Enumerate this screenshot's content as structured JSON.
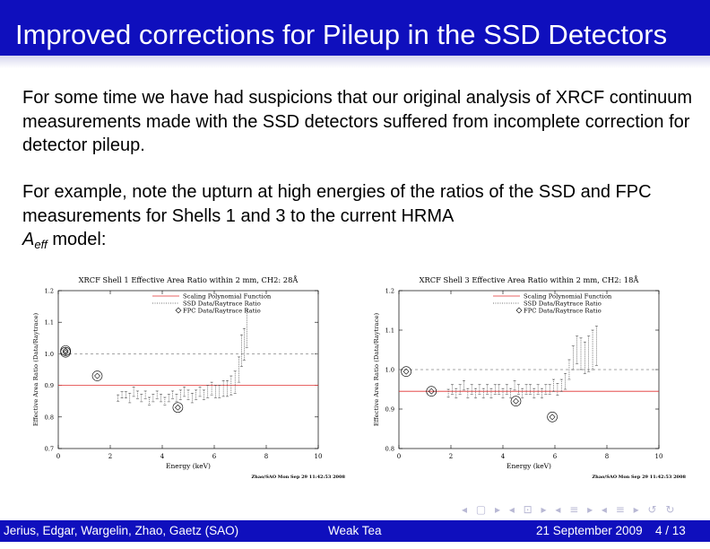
{
  "header": {
    "title": "Improved corrections for Pileup in the SSD Detectors"
  },
  "body": {
    "paragraph1": "For some time we have had suspicions that our original analysis of XRCF continuum measurements made with the SSD detectors suffered from incomplete correction for detector pileup.",
    "paragraph2": "For example, note the upturn at high energies of the ratios of the SSD and FPC measurements for Shells 1 and 3 to the current HRMA",
    "aeff_symbol": "A",
    "aeff_subscript": "eff",
    "aeff_suffix": "model:"
  },
  "footer": {
    "authors": "Jerius, Edgar, Wargelin, Zhao, Gaetz  (SAO)",
    "center": "Weak Tea",
    "date": "21 September 2009",
    "page": "4 / 13"
  },
  "nav": {
    "glyphs": "◂ ▢ ▸ ◂ ⊡ ▸ ◂ ≡ ▸ ◂ ≡ ▸ ↺ ↻"
  },
  "colors": {
    "banner": "#0f0fbd",
    "fit_line": "#e03030",
    "dashed_ref": "#888888"
  },
  "chart_data": [
    {
      "type": "scatter",
      "title": "XRCF Shell 1 Effective Area Ratio within 2 mm, CH2: 28Å",
      "xlabel": "Energy (keV)",
      "ylabel": "Effective Area Ratio (Data/Raytrace)",
      "xlim": [
        0,
        10
      ],
      "ylim": [
        0.7,
        1.2
      ],
      "xticks": [
        "0",
        "2",
        "4",
        "6",
        "8",
        "10"
      ],
      "yticks": [
        "0.7",
        "0.8",
        "0.9",
        "1.0",
        "1.1",
        "1.2"
      ],
      "legend": [
        "Scaling Polynomial Function",
        "SSD Data/Raytrace Ratio",
        "FPC Data/Raytrace Ratio"
      ],
      "legend_position": "top-right",
      "stamp": "Zhao/SAO Mon Sep 29 11:42:53 2008",
      "fit_level": 0.9,
      "reference_level": 1.0,
      "series": [
        {
          "name": "SSD Data/Raytrace Ratio",
          "x": [
            2.3,
            2.45,
            2.6,
            2.75,
            2.9,
            3.05,
            3.2,
            3.35,
            3.5,
            3.65,
            3.8,
            3.95,
            4.1,
            4.25,
            4.4,
            4.55,
            4.7,
            4.85,
            5.0,
            5.15,
            5.3,
            5.45,
            5.6,
            5.75,
            5.9,
            6.05,
            6.2,
            6.35,
            6.5,
            6.65,
            6.8,
            6.95,
            7.05,
            7.15,
            7.25
          ],
          "y": [
            0.86,
            0.87,
            0.87,
            0.86,
            0.88,
            0.87,
            0.86,
            0.87,
            0.85,
            0.86,
            0.87,
            0.86,
            0.85,
            0.86,
            0.87,
            0.86,
            0.87,
            0.88,
            0.87,
            0.86,
            0.87,
            0.88,
            0.87,
            0.88,
            0.89,
            0.88,
            0.88,
            0.89,
            0.89,
            0.9,
            0.91,
            0.95,
            1.01,
            1.03,
            1.08
          ],
          "err": [
            0.01,
            0.01,
            0.01,
            0.015,
            0.015,
            0.012,
            0.012,
            0.012,
            0.012,
            0.012,
            0.012,
            0.012,
            0.012,
            0.012,
            0.012,
            0.012,
            0.015,
            0.015,
            0.015,
            0.015,
            0.015,
            0.015,
            0.015,
            0.02,
            0.02,
            0.02,
            0.02,
            0.025,
            0.025,
            0.03,
            0.035,
            0.04,
            0.05,
            0.05,
            0.06
          ]
        },
        {
          "name": "FPC Data/Raytrace Ratio",
          "x": [
            0.28,
            0.28,
            1.5,
            4.6
          ],
          "y": [
            1.01,
            1.005,
            0.93,
            0.83
          ]
        }
      ]
    },
    {
      "type": "scatter",
      "title": "XRCF Shell 3 Effective Area Ratio within 2 mm, CH2: 18Å",
      "xlabel": "Energy (keV)",
      "ylabel": "Effective Area Ratio (Data/Raytrace)",
      "xlim": [
        0,
        10
      ],
      "ylim": [
        0.8,
        1.2
      ],
      "xticks": [
        "0",
        "2",
        "4",
        "6",
        "8",
        "10"
      ],
      "yticks": [
        "0.8",
        "0.9",
        "1.0",
        "1.1",
        "1.2"
      ],
      "legend": [
        "Scaling Polynomial Function",
        "SSD Data/Raytrace Ratio",
        "FPC Data/Raytrace Ratio"
      ],
      "legend_position": "top-right",
      "stamp": "Zhao/SAO Mon Sep 29 11:42:53 2008",
      "fit_level": 0.945,
      "reference_level": 1.0,
      "series": [
        {
          "name": "SSD Data/Raytrace Ratio",
          "x": [
            1.9,
            2.05,
            2.2,
            2.35,
            2.5,
            2.65,
            2.8,
            2.95,
            3.1,
            3.25,
            3.4,
            3.55,
            3.7,
            3.85,
            4.0,
            4.15,
            4.3,
            4.45,
            4.6,
            4.75,
            4.9,
            5.05,
            5.2,
            5.35,
            5.5,
            5.65,
            5.8,
            5.95,
            6.1,
            6.25,
            6.4,
            6.55,
            6.7,
            6.85,
            7.0,
            7.15,
            7.3,
            7.45,
            7.6
          ],
          "y": [
            0.94,
            0.95,
            0.94,
            0.95,
            0.96,
            0.94,
            0.95,
            0.94,
            0.95,
            0.94,
            0.95,
            0.94,
            0.95,
            0.95,
            0.94,
            0.95,
            0.94,
            0.96,
            0.95,
            0.94,
            0.95,
            0.95,
            0.94,
            0.95,
            0.94,
            0.95,
            0.95,
            0.96,
            0.95,
            0.96,
            0.97,
            1.0,
            1.03,
            1.05,
            1.04,
            1.03,
            1.04,
            1.05,
            1.06
          ],
          "err": [
            0.01,
            0.012,
            0.012,
            0.012,
            0.012,
            0.012,
            0.012,
            0.012,
            0.012,
            0.012,
            0.012,
            0.012,
            0.012,
            0.012,
            0.012,
            0.012,
            0.012,
            0.012,
            0.012,
            0.012,
            0.012,
            0.012,
            0.012,
            0.012,
            0.012,
            0.012,
            0.012,
            0.015,
            0.015,
            0.015,
            0.02,
            0.025,
            0.03,
            0.035,
            0.04,
            0.04,
            0.045,
            0.05,
            0.05
          ]
        },
        {
          "name": "FPC Data/Raytrace Ratio",
          "x": [
            0.28,
            1.25,
            4.5,
            5.9
          ],
          "y": [
            0.995,
            0.945,
            0.92,
            0.88
          ]
        }
      ]
    }
  ]
}
